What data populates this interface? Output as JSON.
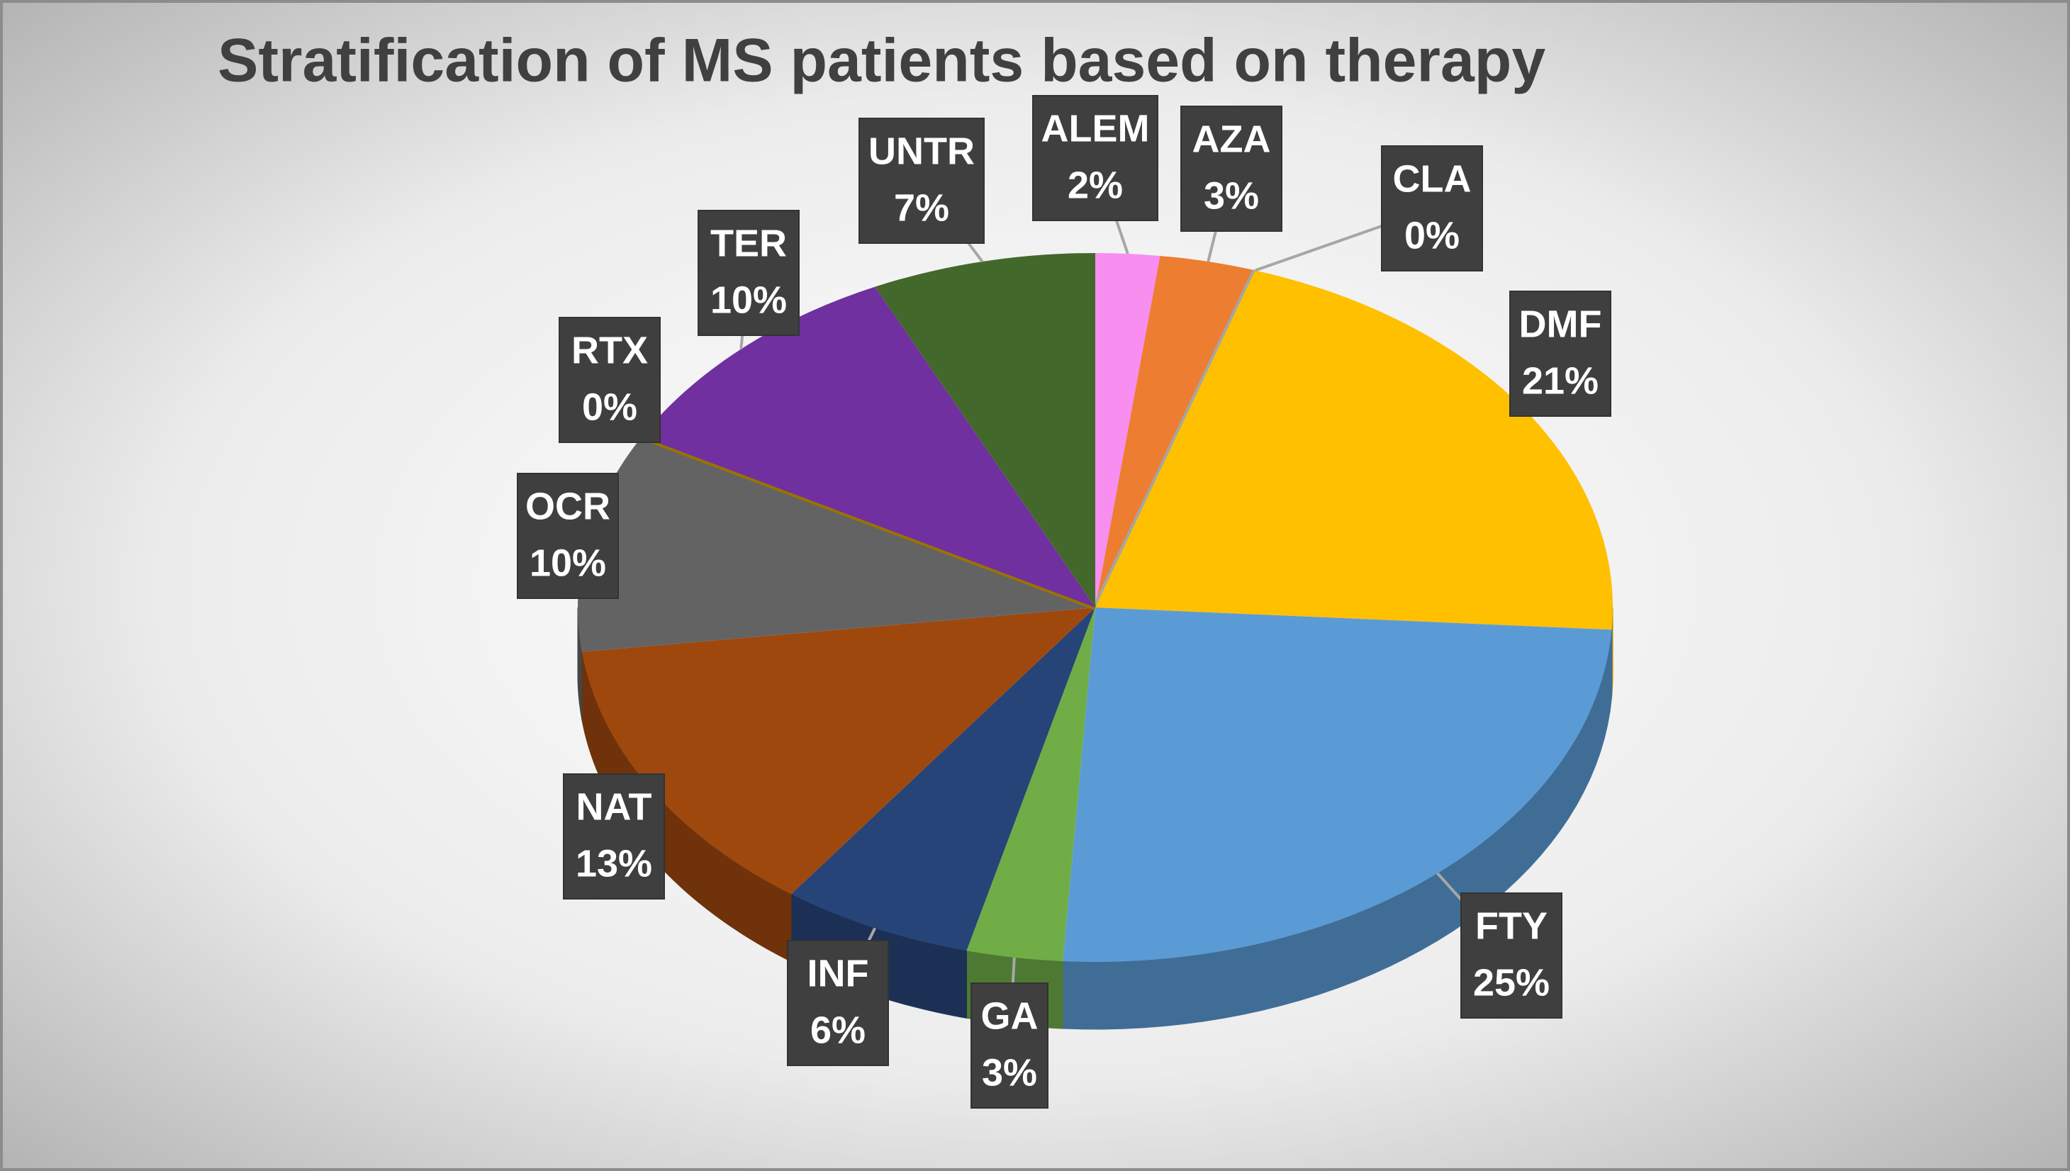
{
  "chart_data": {
    "type": "pie",
    "title": "Stratification of MS patients based on therapy",
    "categories": [
      "ALEM",
      "AZA",
      "CLA",
      "DMF",
      "FTY",
      "GA",
      "INF",
      "NAT",
      "OCR",
      "RTX",
      "TER",
      "UNTR"
    ],
    "values": [
      2,
      3,
      0,
      21,
      25,
      3,
      6,
      13,
      10,
      0,
      10,
      7
    ],
    "value_labels": [
      "2%",
      "3%",
      "0%",
      "21%",
      "25%",
      "3%",
      "6%",
      "13%",
      "10%",
      "0%",
      "10%",
      "7%"
    ],
    "colors": [
      "#f78ef0",
      "#ed7d31",
      "#a5a5a5",
      "#ffc000",
      "#5b9bd5",
      "#70ad47",
      "#264478",
      "#9e480e",
      "#636363",
      "#997300",
      "#7030a0",
      "#43682b"
    ]
  }
}
